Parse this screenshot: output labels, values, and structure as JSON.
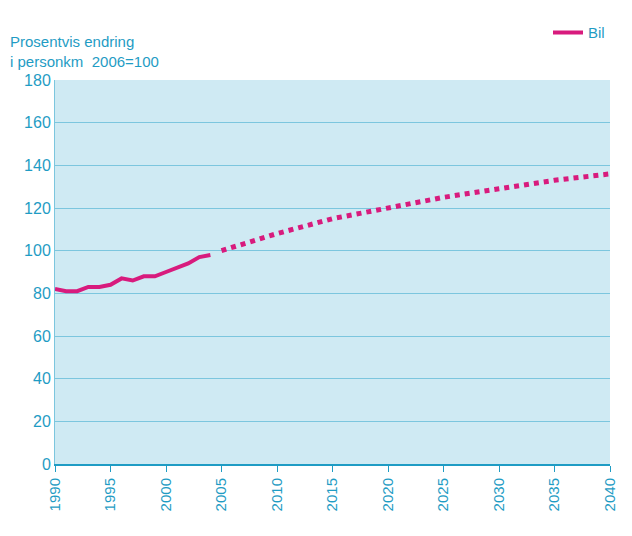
{
  "chart_data": {
    "type": "line",
    "ylabel": "Prosentvis endring\ni personkm  2006=100",
    "x": [
      1990,
      1991,
      1992,
      1993,
      1994,
      1995,
      1996,
      1997,
      1998,
      1999,
      2000,
      2001,
      2002,
      2003,
      2004,
      2005,
      2010,
      2015,
      2020,
      2025,
      2030,
      2035,
      2040
    ],
    "series": [
      {
        "name": "Bil",
        "color": "#d81b7d",
        "line_style": "solid",
        "values": [
          82,
          81,
          81,
          83,
          83,
          84,
          87,
          86,
          88,
          88,
          90,
          92,
          94,
          97,
          98,
          null,
          null,
          null,
          null,
          null,
          null,
          null,
          null
        ]
      },
      {
        "name": "Bil",
        "color": "#d81b7d",
        "line_style": "dotted",
        "values": [
          null,
          null,
          null,
          null,
          null,
          null,
          null,
          null,
          null,
          null,
          null,
          null,
          null,
          null,
          null,
          100,
          108,
          115,
          120,
          125,
          129,
          133,
          136
        ]
      }
    ],
    "xlim": [
      1990,
      2040
    ],
    "xticks": [
      1990,
      1995,
      2000,
      2005,
      2010,
      2015,
      2020,
      2025,
      2030,
      2035,
      2040
    ],
    "ylim": [
      0,
      180
    ],
    "yticks": [
      0,
      20,
      40,
      60,
      80,
      100,
      120,
      140,
      160,
      180
    ],
    "grid": true,
    "legend": "top right"
  }
}
